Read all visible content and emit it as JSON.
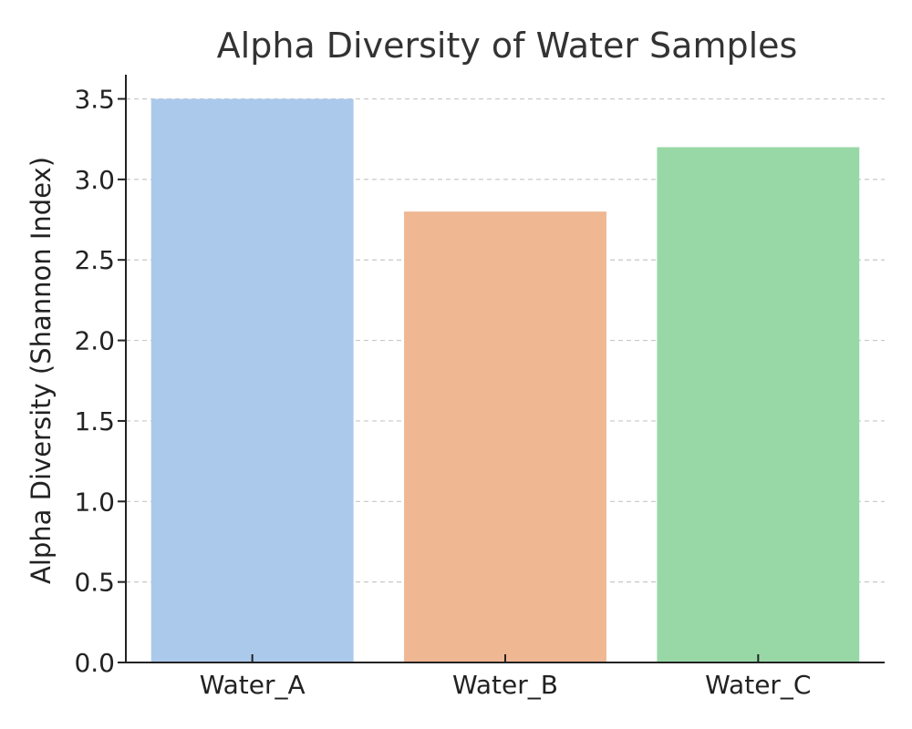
{
  "chart_data": {
    "type": "bar",
    "title": "Alpha Diversity of Water Samples",
    "xlabel": "",
    "ylabel": "Alpha Diversity (Shannon Index)",
    "categories": [
      "Water_A",
      "Water_B",
      "Water_C"
    ],
    "values": [
      3.5,
      2.8,
      3.2
    ],
    "colors": [
      "#abc9eb",
      "#efb792",
      "#98d8a7"
    ],
    "ylim": [
      0,
      3.65
    ],
    "yticks": [
      0.0,
      0.5,
      1.0,
      1.5,
      2.0,
      2.5,
      3.0,
      3.5
    ],
    "ytick_labels": [
      "0.0",
      "0.5",
      "1.0",
      "1.5",
      "2.0",
      "2.5",
      "3.0",
      "3.5"
    ],
    "grid": true,
    "legend": "none"
  }
}
